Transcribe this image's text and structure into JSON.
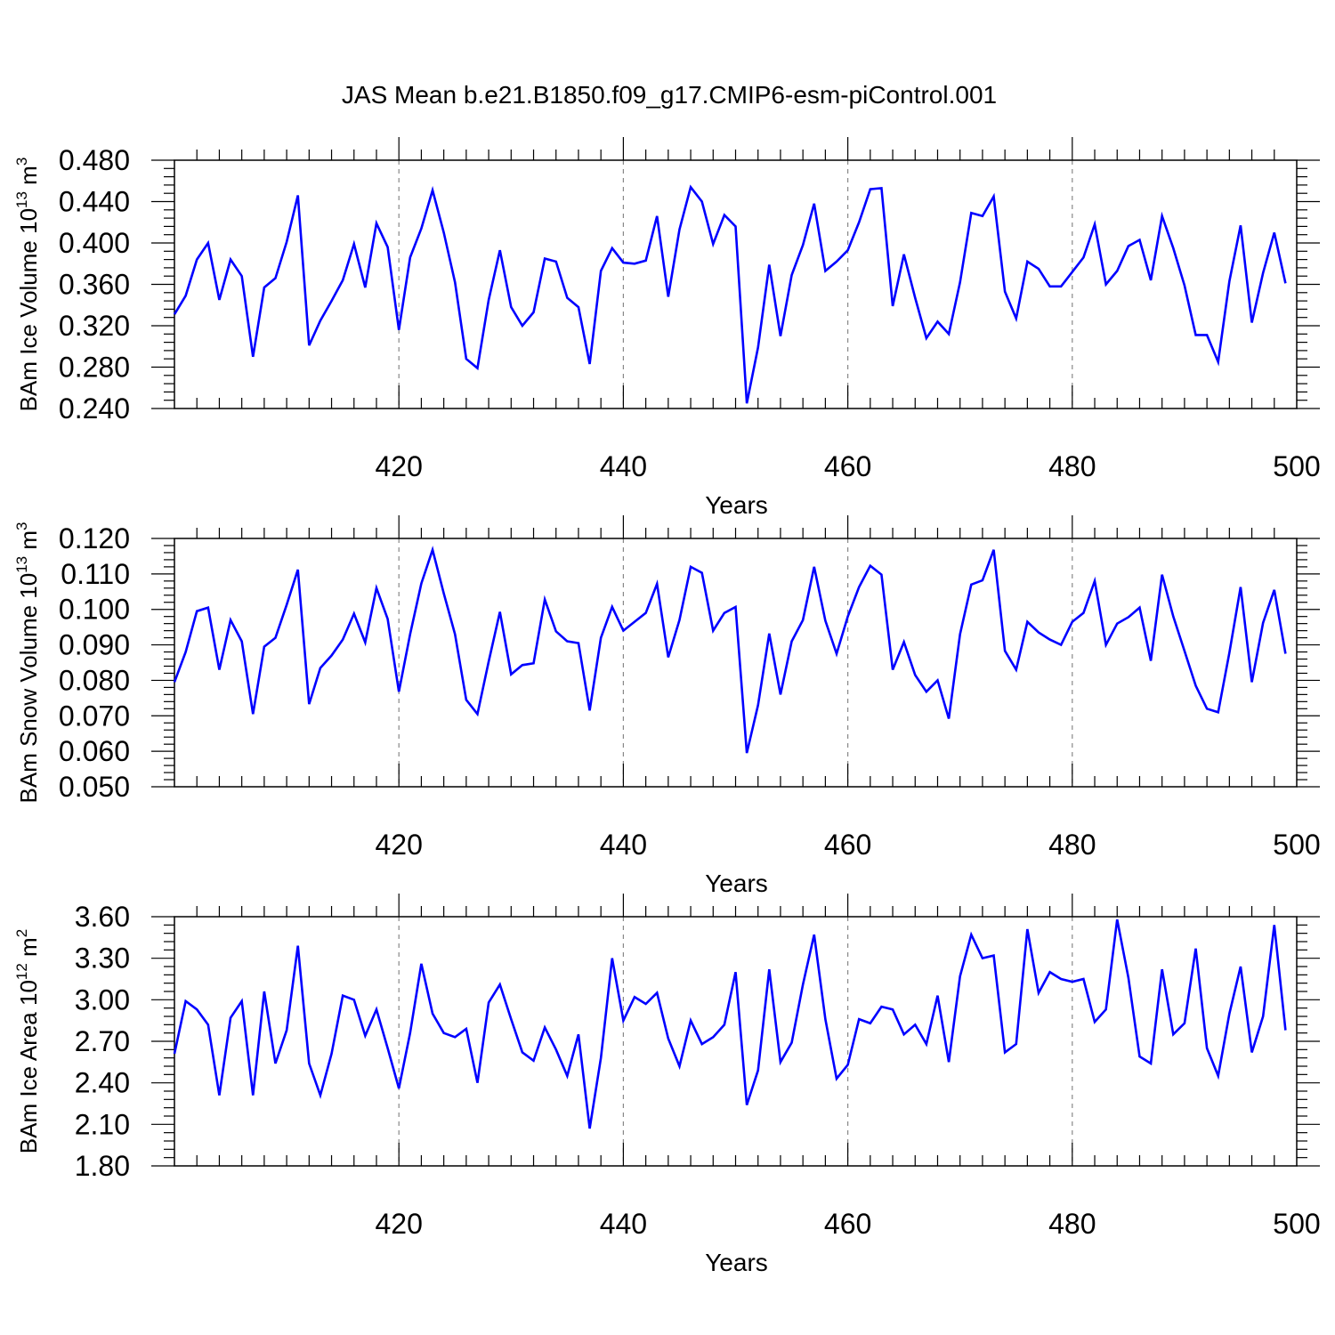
{
  "title": "JAS Mean b.e21.B1850.f09_g17.CMIP6-esm-piControl.001",
  "colors": {
    "line": "#0000ff",
    "axis": "#000000",
    "grid": "#888888"
  },
  "chart_data": [
    {
      "type": "line",
      "name": "ice-volume",
      "ylabel": {
        "text": "BAm Ice Volume 10",
        "exp": "13",
        "unit": " m",
        "unit_exp": "3"
      },
      "xlabel": "Years",
      "xlim": [
        400,
        500
      ],
      "ylim": [
        0.24,
        0.48
      ],
      "x_ticks": [
        "420",
        "440",
        "460",
        "480",
        "500"
      ],
      "y_ticks": [
        "0.240",
        "0.280",
        "0.320",
        "0.360",
        "0.400",
        "0.440",
        "0.480"
      ],
      "x_start": 400,
      "values": [
        0.331,
        0.349,
        0.384,
        0.4,
        0.345,
        0.384,
        0.368,
        0.29,
        0.357,
        0.366,
        0.401,
        0.446,
        0.301,
        0.325,
        0.344,
        0.364,
        0.399,
        0.357,
        0.419,
        0.396,
        0.316,
        0.386,
        0.414,
        0.451,
        0.41,
        0.362,
        0.288,
        0.279,
        0.345,
        0.393,
        0.338,
        0.32,
        0.333,
        0.385,
        0.382,
        0.347,
        0.338,
        0.283,
        0.373,
        0.395,
        0.381,
        0.38,
        0.383,
        0.426,
        0.348,
        0.413,
        0.454,
        0.44,
        0.399,
        0.427,
        0.416,
        0.245,
        0.299,
        0.379,
        0.31,
        0.369,
        0.398,
        0.438,
        0.373,
        0.382,
        0.393,
        0.42,
        0.452,
        0.453,
        0.339,
        0.389,
        0.347,
        0.308,
        0.324,
        0.312,
        0.362,
        0.429,
        0.426,
        0.445,
        0.353,
        0.327,
        0.382,
        0.375,
        0.358,
        0.358,
        0.372,
        0.386,
        0.418,
        0.36,
        0.373,
        0.397,
        0.403,
        0.364,
        0.426,
        0.395,
        0.359,
        0.311,
        0.311,
        0.285,
        0.363,
        0.417,
        0.323,
        0.371,
        0.41,
        0.361
      ]
    },
    {
      "type": "line",
      "name": "snow-volume",
      "ylabel": {
        "text": "BAm Snow Volume 10",
        "exp": "13",
        "unit": " m",
        "unit_exp": "3"
      },
      "xlabel": "Years",
      "xlim": [
        400,
        500
      ],
      "ylim": [
        0.05,
        0.12
      ],
      "x_ticks": [
        "420",
        "440",
        "460",
        "480",
        "500"
      ],
      "y_ticks": [
        "0.050",
        "0.060",
        "0.070",
        "0.080",
        "0.090",
        "0.100",
        "0.110",
        "0.120"
      ],
      "x_start": 400,
      "values": [
        0.0795,
        0.088,
        0.0995,
        0.1005,
        0.083,
        0.097,
        0.091,
        0.0705,
        0.0895,
        0.092,
        0.1013,
        0.1112,
        0.0733,
        0.0835,
        0.087,
        0.0915,
        0.0988,
        0.0907,
        0.106,
        0.0973,
        0.0768,
        0.093,
        0.1073,
        0.1168,
        0.1045,
        0.093,
        0.0745,
        0.0705,
        0.0853,
        0.0993,
        0.0817,
        0.0843,
        0.0848,
        0.1028,
        0.0938,
        0.091,
        0.0905,
        0.0715,
        0.092,
        0.1007,
        0.094,
        0.0965,
        0.099,
        0.1072,
        0.0865,
        0.097,
        0.112,
        0.1103,
        0.094,
        0.099,
        0.1007,
        0.0595,
        0.073,
        0.0932,
        0.076,
        0.091,
        0.097,
        0.112,
        0.0968,
        0.0875,
        0.098,
        0.1063,
        0.1123,
        0.1098,
        0.083,
        0.0908,
        0.0815,
        0.0768,
        0.08,
        0.0692,
        0.093,
        0.107,
        0.1082,
        0.1168,
        0.0883,
        0.083,
        0.0965,
        0.0935,
        0.0915,
        0.09,
        0.0965,
        0.099,
        0.108,
        0.09,
        0.096,
        0.0978,
        0.1005,
        0.0855,
        0.1098,
        0.098,
        0.0883,
        0.0785,
        0.072,
        0.071,
        0.0878,
        0.1063,
        0.0795,
        0.0962,
        0.1055,
        0.0875
      ]
    },
    {
      "type": "line",
      "name": "ice-area",
      "ylabel": {
        "text": "BAm Ice Area 10",
        "exp": "12",
        "unit": " m",
        "unit_exp": "2"
      },
      "xlabel": "Years",
      "xlim": [
        400,
        500
      ],
      "ylim": [
        1.8,
        3.6
      ],
      "x_ticks": [
        "420",
        "440",
        "460",
        "480",
        "500"
      ],
      "y_ticks": [
        "1.80",
        "2.10",
        "2.40",
        "2.70",
        "3.00",
        "3.30",
        "3.60"
      ],
      "x_start": 400,
      "values": [
        2.61,
        2.99,
        2.93,
        2.82,
        2.31,
        2.87,
        2.99,
        2.31,
        3.06,
        2.54,
        2.78,
        3.39,
        2.54,
        2.31,
        2.61,
        3.03,
        3.0,
        2.74,
        2.93,
        2.65,
        2.36,
        2.76,
        3.26,
        2.9,
        2.76,
        2.73,
        2.79,
        2.4,
        2.98,
        3.11,
        2.86,
        2.62,
        2.56,
        2.8,
        2.64,
        2.45,
        2.75,
        2.07,
        2.58,
        3.3,
        2.85,
        3.02,
        2.97,
        3.05,
        2.72,
        2.52,
        2.85,
        2.68,
        2.73,
        2.82,
        3.2,
        2.24,
        2.49,
        3.22,
        2.55,
        2.69,
        3.11,
        3.47,
        2.86,
        2.43,
        2.53,
        2.86,
        2.83,
        2.95,
        2.93,
        2.75,
        2.82,
        2.68,
        3.03,
        2.55,
        3.17,
        3.47,
        3.3,
        3.32,
        2.62,
        2.68,
        3.51,
        3.05,
        3.2,
        3.15,
        3.13,
        3.15,
        2.84,
        2.93,
        3.58,
        3.16,
        2.59,
        2.54,
        3.22,
        2.75,
        2.83,
        3.37,
        2.65,
        2.45,
        2.9,
        3.24,
        2.62,
        2.88,
        3.54,
        2.78
      ]
    }
  ]
}
